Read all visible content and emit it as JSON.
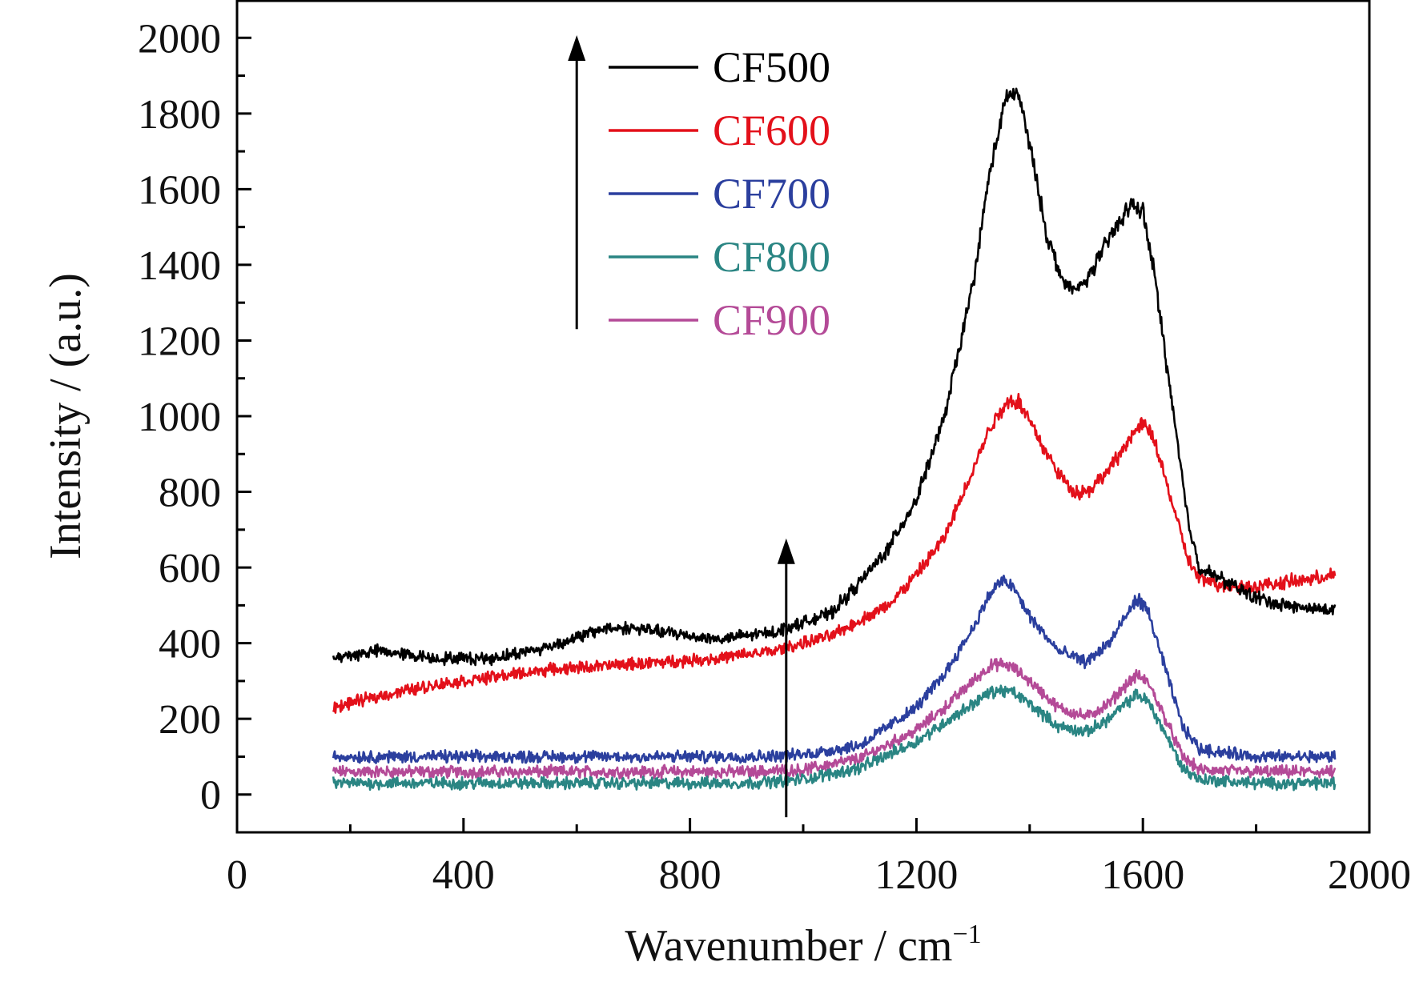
{
  "chart_data": {
    "type": "line",
    "title": "",
    "xlabel": "Wavenumber / cm",
    "xlabel_superscript": "−1",
    "ylabel": "Intensity / (a.u.)",
    "xlim": [
      0,
      2000
    ],
    "ylim": [
      -100,
      2100
    ],
    "x_ticks": [
      "0",
      "400",
      "800",
      "1200",
      "1600",
      "2000"
    ],
    "y_ticks": [
      "0",
      "200",
      "400",
      "600",
      "800",
      "1000",
      "1200",
      "1400",
      "1600",
      "1800",
      "2000"
    ],
    "grid": false,
    "legend_position": "top-center",
    "annotations": [
      {
        "type": "arrow",
        "direction": "up",
        "x": 600,
        "y_start": 1230,
        "y_end": 1990
      },
      {
        "type": "arrow",
        "direction": "up",
        "x": 970,
        "y_start": -60,
        "y_end": 660
      }
    ],
    "series": [
      {
        "name": "CF500",
        "color": "#000000",
        "x": [
          170,
          250,
          350,
          450,
          550,
          650,
          700,
          750,
          850,
          950,
          1050,
          1100,
          1150,
          1200,
          1250,
          1300,
          1330,
          1360,
          1380,
          1400,
          1430,
          1460,
          1480,
          1500,
          1530,
          1560,
          1580,
          1600,
          1620,
          1650,
          1680,
          1700,
          1750,
          1800,
          1850,
          1900,
          1940
        ],
        "values": [
          360,
          380,
          360,
          360,
          390,
          440,
          440,
          430,
          410,
          430,
          480,
          560,
          650,
          780,
          1000,
          1350,
          1650,
          1850,
          1850,
          1720,
          1480,
          1350,
          1330,
          1360,
          1440,
          1520,
          1560,
          1540,
          1380,
          1050,
          720,
          600,
          560,
          520,
          500,
          490,
          490
        ]
      },
      {
        "name": "CF600",
        "color": "#e3101a",
        "x": [
          170,
          250,
          350,
          450,
          550,
          650,
          750,
          850,
          950,
          1050,
          1100,
          1150,
          1200,
          1250,
          1300,
          1330,
          1360,
          1380,
          1400,
          1430,
          1460,
          1480,
          1500,
          1530,
          1560,
          1580,
          1600,
          1620,
          1650,
          1680,
          1700,
          1750,
          1800,
          1850,
          1900,
          1940
        ],
        "values": [
          230,
          260,
          290,
          310,
          330,
          340,
          350,
          360,
          380,
          420,
          460,
          500,
          580,
          680,
          860,
          970,
          1040,
          1040,
          990,
          900,
          830,
          800,
          800,
          840,
          900,
          950,
          980,
          940,
          780,
          620,
          570,
          550,
          550,
          560,
          570,
          580
        ]
      },
      {
        "name": "CF700",
        "color": "#2b3f9e",
        "x": [
          170,
          300,
          500,
          700,
          900,
          1000,
          1100,
          1200,
          1250,
          1300,
          1330,
          1350,
          1370,
          1400,
          1450,
          1500,
          1540,
          1570,
          1590,
          1610,
          1640,
          1670,
          1700,
          1800,
          1940
        ],
        "values": [
          100,
          100,
          100,
          100,
          100,
          105,
          130,
          230,
          320,
          440,
          530,
          565,
          550,
          470,
          380,
          350,
          400,
          470,
          520,
          480,
          330,
          180,
          120,
          100,
          100
        ]
      },
      {
        "name": "CF800",
        "color": "#2a8583",
        "x": [
          170,
          300,
          500,
          700,
          900,
          1000,
          1100,
          1200,
          1250,
          1300,
          1330,
          1350,
          1370,
          1400,
          1450,
          1500,
          1540,
          1570,
          1590,
          1610,
          1640,
          1670,
          1700,
          1800,
          1940
        ],
        "values": [
          30,
          30,
          30,
          30,
          30,
          40,
          70,
          140,
          190,
          240,
          270,
          275,
          270,
          240,
          180,
          165,
          200,
          240,
          265,
          245,
          160,
          70,
          40,
          30,
          30
        ]
      },
      {
        "name": "CF900",
        "color": "#b44a97",
        "x": [
          170,
          300,
          500,
          700,
          900,
          1000,
          1100,
          1200,
          1250,
          1300,
          1330,
          1350,
          1370,
          1400,
          1450,
          1500,
          1540,
          1570,
          1590,
          1610,
          1640,
          1670,
          1700,
          1800,
          1940
        ],
        "values": [
          60,
          60,
          60,
          60,
          60,
          65,
          95,
          170,
          230,
          300,
          340,
          345,
          335,
          300,
          230,
          205,
          240,
          290,
          315,
          295,
          200,
          100,
          65,
          60,
          60
        ]
      }
    ]
  }
}
